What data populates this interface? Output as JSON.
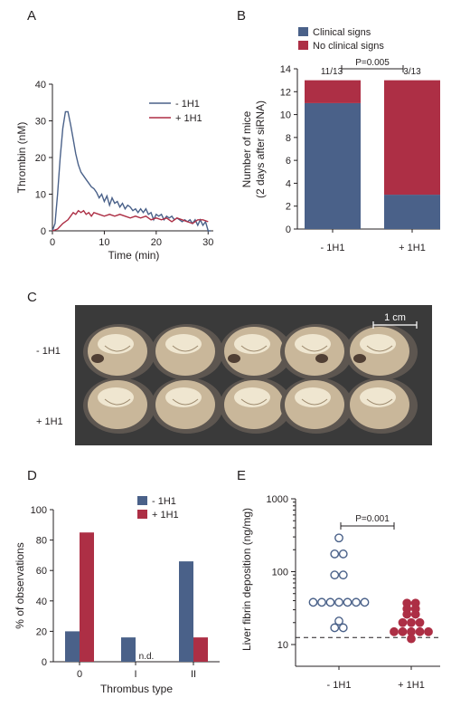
{
  "panels": {
    "a": "A",
    "b": "B",
    "c": "C",
    "d": "D",
    "e": "E"
  },
  "colors": {
    "blue": "#4a6189",
    "red": "#ad2f45",
    "axis": "#231f20",
    "photo_bg": "#3a3a3a"
  },
  "chart_data": [
    {
      "id": "A",
      "type": "line",
      "xlabel": "Time (min)",
      "ylabel": "Thrombin (nM)",
      "xlim": [
        0,
        31
      ],
      "ylim": [
        0,
        40
      ],
      "xticks": [
        "0",
        "10",
        "20",
        "30"
      ],
      "yticks": [
        "0",
        "10",
        "20",
        "30",
        "40"
      ],
      "legend_position": "top-right",
      "series": [
        {
          "name": "- 1H1",
          "color": "#4a6189",
          "x": [
            0,
            0.5,
            1,
            1.5,
            2,
            2.5,
            3,
            3.5,
            4,
            4.5,
            5,
            5.5,
            6,
            6.5,
            7,
            7.5,
            8,
            8.5,
            9,
            9.5,
            10,
            10.5,
            11,
            11.5,
            12,
            12.5,
            13,
            13.5,
            14,
            14.5,
            15,
            15.5,
            16,
            16.5,
            17,
            17.5,
            18,
            18.5,
            19,
            19.5,
            20,
            20.5,
            21,
            21.5,
            22,
            22.5,
            23,
            23.5,
            24,
            24.5,
            25,
            25.5,
            26,
            26.5,
            27,
            27.5,
            28,
            28.5,
            29,
            29.5,
            30,
            30.5
          ],
          "y": [
            0,
            2,
            10,
            20,
            28,
            32.5,
            32.5,
            29,
            25,
            21,
            18,
            16,
            15,
            14,
            13,
            12,
            11.5,
            10.5,
            9,
            10,
            8,
            9.5,
            7,
            9,
            7.5,
            8,
            6.5,
            7.5,
            6,
            7,
            6.5,
            5.5,
            6,
            5,
            6,
            5,
            6,
            4.5,
            5,
            3,
            4.5,
            4,
            4.5,
            3,
            4,
            3.5,
            4,
            3,
            3.5,
            3,
            2.5,
            3,
            2.5,
            3,
            2,
            3,
            1.5,
            3,
            1.5,
            2.5,
            0,
            0
          ]
        },
        {
          "name": "+ 1H1",
          "color": "#ad2f45",
          "x": [
            0,
            1,
            2,
            3,
            3.5,
            4,
            4.5,
            5,
            5.5,
            6,
            6.5,
            7,
            7.5,
            8,
            9,
            10,
            11,
            12,
            13,
            14,
            15,
            16,
            17,
            18,
            19,
            20,
            21,
            22,
            23,
            24,
            25,
            26,
            27,
            28,
            29,
            30
          ],
          "y": [
            0,
            0.5,
            2,
            3,
            4,
            5,
            4.5,
            5.5,
            5,
            5.5,
            4.5,
            5,
            4,
            5,
            4.5,
            4,
            4.5,
            4,
            4.5,
            4,
            3.5,
            4,
            3.5,
            4,
            3,
            3.5,
            3,
            3.5,
            2.5,
            3.5,
            3,
            2.5,
            2,
            3,
            3,
            2.5
          ]
        }
      ]
    },
    {
      "id": "B",
      "type": "bar",
      "stacked": true,
      "ylabel_line1": "Number of mice",
      "ylabel_line2": "(2 days after siRNA)",
      "categories": [
        "- 1H1",
        "+ 1H1"
      ],
      "ylim": [
        0,
        14
      ],
      "yticks": [
        "0",
        "2",
        "4",
        "6",
        "8",
        "10",
        "12",
        "14"
      ],
      "legend_position": "top",
      "series": [
        {
          "name": "Clinical signs",
          "color": "#4a6189",
          "values": [
            11,
            3
          ]
        },
        {
          "name": "No clinical signs",
          "color": "#ad2f45",
          "values": [
            2,
            10
          ]
        }
      ],
      "annotations": {
        "left": "11/13",
        "right": "3/13",
        "pvalue": "P=0.005"
      }
    },
    {
      "id": "D",
      "type": "bar",
      "xlabel": "Thrombus type",
      "ylabel": "% of observations",
      "categories": [
        "0",
        "I",
        "II"
      ],
      "ylim": [
        0,
        100
      ],
      "yticks": [
        "0",
        "20",
        "40",
        "60",
        "80",
        "100"
      ],
      "legend_position": "top-right",
      "series": [
        {
          "name": "- 1H1",
          "color": "#4a6189",
          "values": [
            20,
            16,
            66
          ]
        },
        {
          "name": "+ 1H1",
          "color": "#ad2f45",
          "values": [
            85,
            null,
            16
          ]
        }
      ],
      "annotation_nd": "n.d."
    },
    {
      "id": "E",
      "type": "scatter",
      "ylabel": "Liver fibrin deposition (ng/mg)",
      "yscale": "log",
      "ylim": [
        10,
        1000
      ],
      "yticks": [
        "10",
        "100",
        "1000"
      ],
      "categories": [
        "- 1H1",
        "+ 1H1"
      ],
      "pvalue": "P=0.001",
      "detection_limit": 12.5,
      "series": [
        {
          "name": "- 1H1",
          "color": "#4a6189",
          "hollow": true,
          "values": [
            290,
            175,
            175,
            90,
            78,
            38,
            38,
            38,
            38,
            38,
            38,
            38,
            21,
            17,
            17
          ]
        },
        {
          "name": "+ 1H1",
          "color": "#ad2f45",
          "hollow": false,
          "values": [
            37,
            37,
            31,
            31,
            26,
            23,
            20,
            19,
            18,
            15,
            14,
            14,
            13,
            13,
            12
          ]
        }
      ]
    }
  ],
  "photo": {
    "scale_label": "1 cm",
    "row_labels": [
      "- 1H1",
      "+ 1H1"
    ]
  }
}
